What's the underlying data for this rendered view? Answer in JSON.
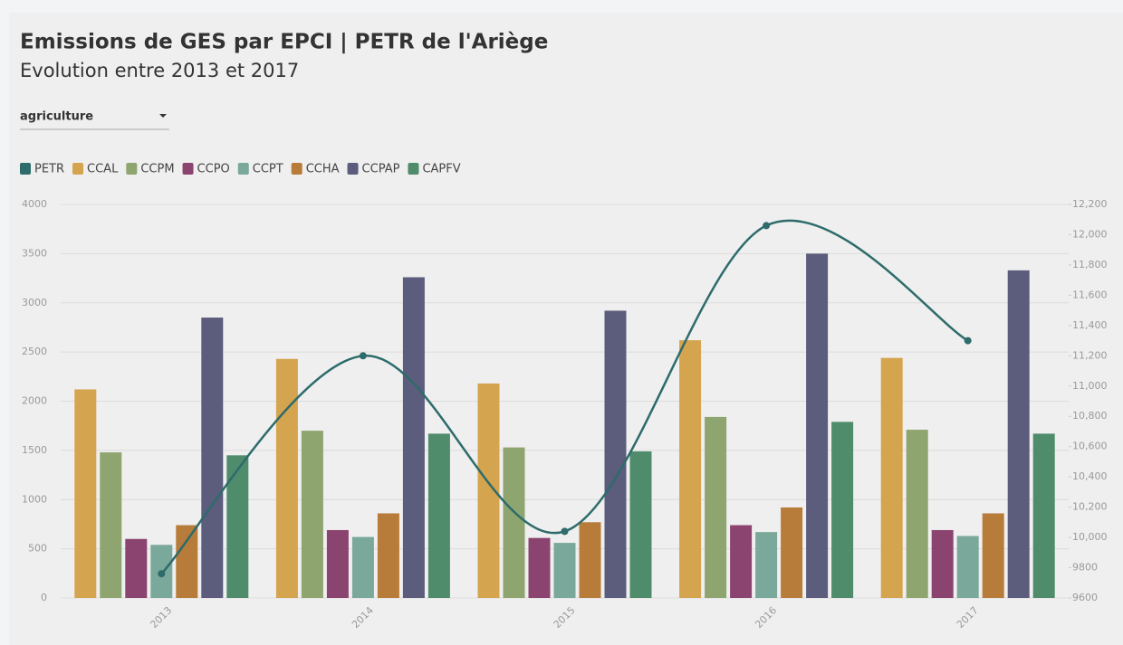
{
  "controls": {
    "dropdown": "agriculture"
  },
  "chart_data": {
    "type": "bar",
    "title": "Emissions de GES par EPCI | PETR de l'Ariège",
    "subtitle": "Evolution entre 2013 et 2017",
    "categories": [
      "2013",
      "2014",
      "2015",
      "2016",
      "2017"
    ],
    "series": [
      {
        "name": "PETR",
        "color": "#2e6b6b",
        "type": "line",
        "axis": "y2",
        "values": [
          9760,
          11200,
          10040,
          12060,
          11300
        ]
      },
      {
        "name": "CCAL",
        "color": "#d4a44f",
        "values": [
          2120,
          2430,
          2180,
          2620,
          2440
        ]
      },
      {
        "name": "CCPM",
        "color": "#8ea56f",
        "values": [
          1480,
          1700,
          1530,
          1840,
          1710
        ]
      },
      {
        "name": "CCPO",
        "color": "#8b4470",
        "values": [
          600,
          690,
          610,
          740,
          690
        ]
      },
      {
        "name": "CCPT",
        "color": "#7aa89a",
        "values": [
          540,
          620,
          560,
          670,
          630
        ]
      },
      {
        "name": "CCHA",
        "color": "#b77c3a",
        "values": [
          740,
          860,
          770,
          920,
          860
        ]
      },
      {
        "name": "CCPAP",
        "color": "#5c5c7c",
        "values": [
          2850,
          3260,
          2920,
          3500,
          3330
        ]
      },
      {
        "name": "CAPFV",
        "color": "#4f8c6c",
        "values": [
          1450,
          1670,
          1490,
          1790,
          1670
        ]
      }
    ],
    "ylim": [
      0,
      4000
    ],
    "yticks": [
      0,
      500,
      1000,
      1500,
      2000,
      2500,
      3000,
      3500,
      4000
    ],
    "y2lim": [
      9600,
      12200
    ],
    "y2ticks": [
      9600,
      9800,
      {
        "value": 10000,
        "label": "10,000"
      },
      {
        "value": 10200,
        "label": "10,200"
      },
      {
        "value": 10400,
        "label": "10,400"
      },
      {
        "value": 10600,
        "label": "10,600"
      },
      {
        "value": 10800,
        "label": "10,800"
      },
      {
        "value": 11000,
        "label": "11,000"
      },
      {
        "value": 11200,
        "label": "11,200"
      },
      {
        "value": 11400,
        "label": "11,400"
      },
      {
        "value": 11600,
        "label": "11,600"
      },
      {
        "value": 11800,
        "label": "11,800"
      },
      {
        "value": 12000,
        "label": "12,000"
      },
      {
        "value": 12200,
        "label": "12,200"
      }
    ],
    "grid": true
  }
}
